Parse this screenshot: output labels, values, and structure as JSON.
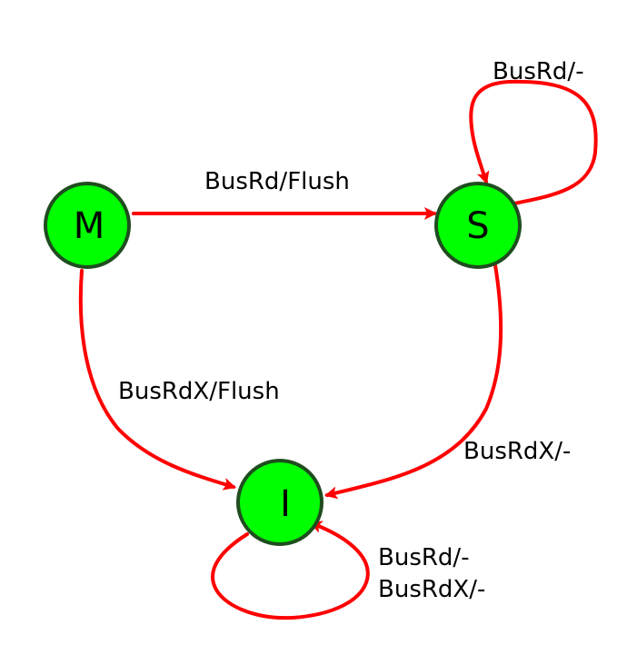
{
  "colors": {
    "state_fill": "#00ff00",
    "state_stroke": "#1f4d1f",
    "edge": "#ff0000",
    "text": "#000000"
  },
  "states": {
    "m": "M",
    "s": "S",
    "i": "I"
  },
  "transitions": {
    "s_self": "BusRd/-",
    "m_to_s": "BusRd/Flush",
    "m_to_i": "BusRdX/Flush",
    "s_to_i": "BusRdX/-",
    "i_self_1": "BusRd/-",
    "i_self_2": "BusRdX/-"
  }
}
